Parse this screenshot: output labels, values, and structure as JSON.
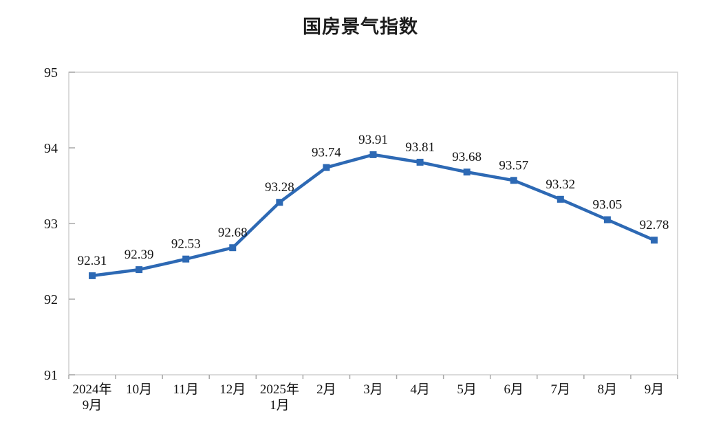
{
  "chart_data": {
    "type": "line",
    "title": "国房景气指数",
    "categories": [
      "2024年\n9月",
      "10月",
      "11月",
      "12月",
      "2025年\n1月",
      "2月",
      "3月",
      "4月",
      "5月",
      "6月",
      "7月",
      "8月",
      "9月"
    ],
    "series": [
      {
        "name": "国房景气指数",
        "values": [
          92.31,
          92.39,
          92.53,
          92.68,
          93.28,
          93.74,
          93.91,
          93.81,
          93.68,
          93.57,
          93.32,
          93.05,
          92.78
        ]
      }
    ],
    "data_labels": [
      "92.31",
      "92.39",
      "92.53",
      "92.68",
      "93.28",
      "93.74",
      "93.91",
      "93.81",
      "93.68",
      "93.57",
      "93.32",
      "93.05",
      "92.78"
    ],
    "xlabel": "",
    "ylabel": "",
    "ylim": [
      91,
      95
    ],
    "yticks": [
      91,
      92,
      93,
      94,
      95
    ],
    "grid": false,
    "legend": "none",
    "marker": "square",
    "line_color": "#2d69b4",
    "label_color": "#141414",
    "border_color": "#cfcfcf",
    "tick_color": "#a8a8a8",
    "background_color": "#ffffff"
  }
}
